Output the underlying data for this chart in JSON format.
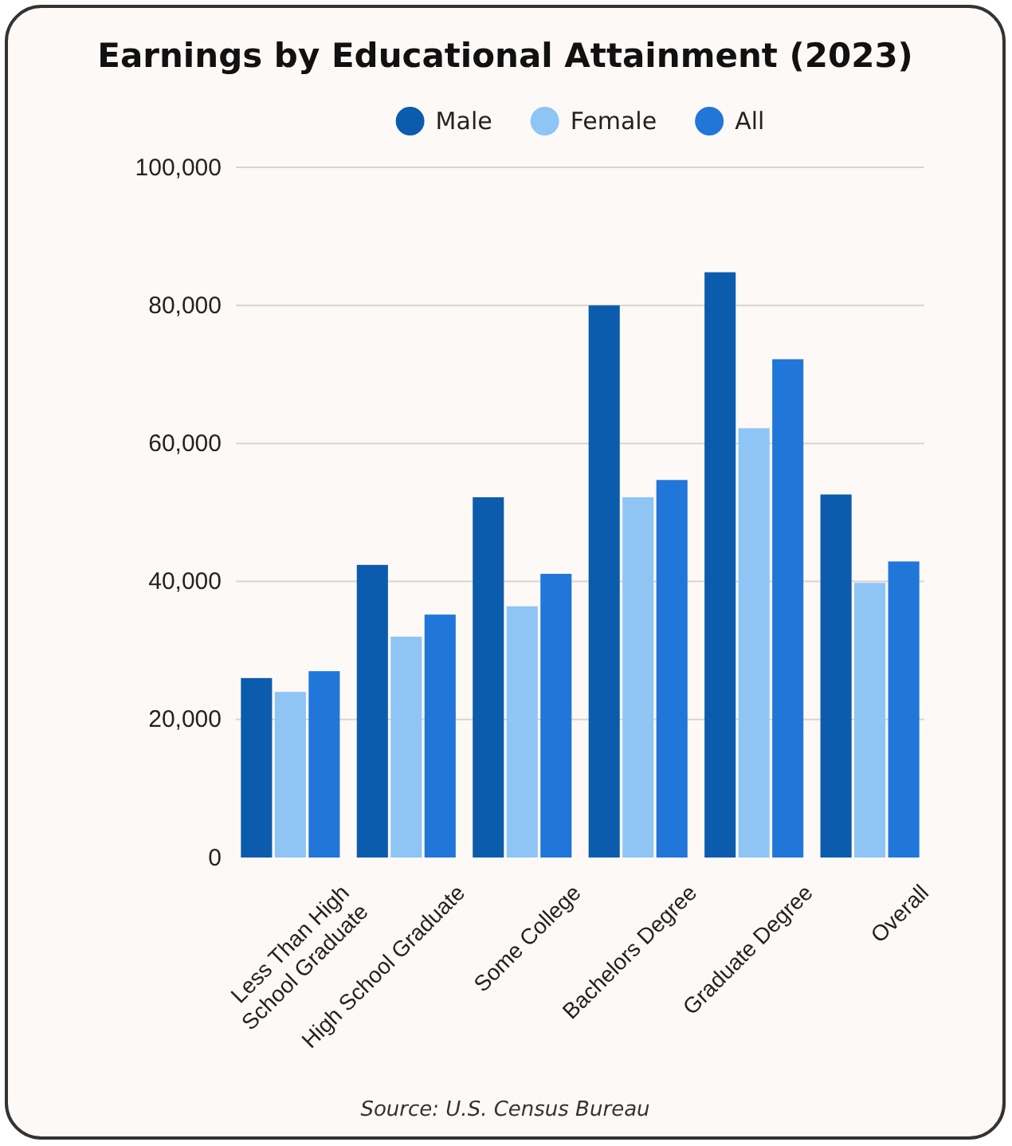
{
  "chart_data": {
    "type": "bar",
    "title": "Earnings by Educational Attainment (2023)",
    "categories": [
      "Less Than High School Graduate",
      "High School Graduate",
      "Some College",
      "Bachelors Degree",
      "Graduate Degree",
      "Overall"
    ],
    "series": [
      {
        "name": "Male",
        "color": "#0b5cad",
        "values": [
          26000,
          42400,
          52200,
          80000,
          84800,
          52600
        ]
      },
      {
        "name": "Female",
        "color": "#8ec5f5",
        "values": [
          24000,
          32000,
          36400,
          52200,
          62200,
          39800
        ]
      },
      {
        "name": "All",
        "color": "#2176d9",
        "values": [
          27000,
          35200,
          41100,
          54700,
          72200,
          42900
        ]
      }
    ],
    "ylim": [
      0,
      100000
    ],
    "yticks": [
      {
        "value": 0,
        "label": "0"
      },
      {
        "value": 20000,
        "label": "20,000"
      },
      {
        "value": 40000,
        "label": "40,000"
      },
      {
        "value": 60000,
        "label": "60,000"
      },
      {
        "value": 80000,
        "label": "80,000"
      },
      {
        "value": 100000,
        "label": "100,000"
      }
    ],
    "grid": "y",
    "legend": "top",
    "annotations": [
      "Source: U.S. Census Bureau"
    ]
  }
}
